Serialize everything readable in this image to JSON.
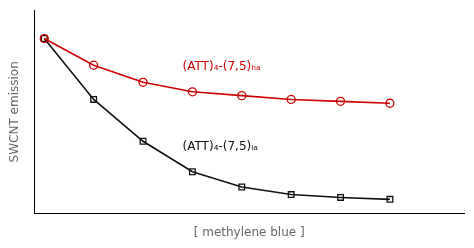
{
  "chart_data": {
    "type": "line",
    "xlabel": "[ methylene blue ]",
    "ylabel": "SWCNT emission",
    "x": [
      0,
      1,
      2,
      3,
      4,
      5,
      6,
      7
    ],
    "series": [
      {
        "color": "#cc0000",
        "marker": "circle",
        "values": [
          0.9,
          0.76,
          0.67,
          0.62,
          0.6,
          0.58,
          0.57,
          0.56
        ]
      },
      {
        "color": "#111111",
        "marker": "square",
        "values": [
          0.9,
          0.58,
          0.36,
          0.2,
          0.12,
          0.08,
          0.065,
          0.055
        ]
      }
    ],
    "xlim": [
      -0.2,
      8.5
    ],
    "ylim": [
      -0.02,
      1.05
    ],
    "grid": false,
    "tick_labels": false,
    "annotations": [
      {
        "text": "(ATT)₄-(7,5)ₕₐ",
        "x": 2.8,
        "y": 0.72,
        "color": "#cc0000"
      },
      {
        "text": "(ATT)₄-(7,5)ₗₐ",
        "x": 2.8,
        "y": 0.3,
        "color": "#111111"
      }
    ]
  }
}
